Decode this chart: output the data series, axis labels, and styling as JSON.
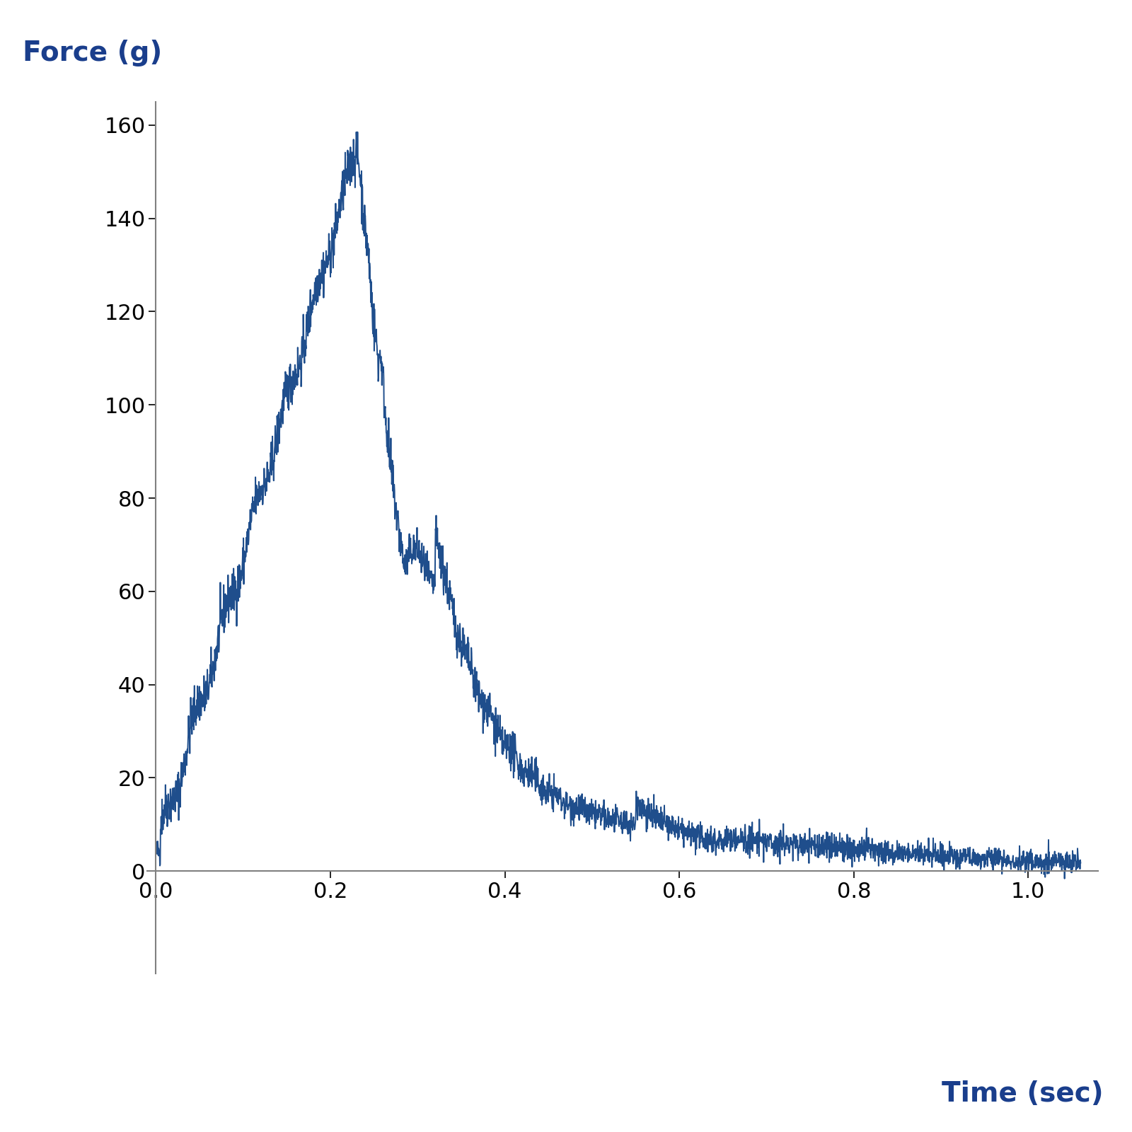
{
  "xlabel": "Time (sec)",
  "ylabel": "Force (g)",
  "xlabel_color": "#1a3e8c",
  "ylabel_color": "#1a3e8c",
  "line_color": "#1f4e8c",
  "xlim": [
    -0.01,
    1.08
  ],
  "ylim": [
    -22,
    165
  ],
  "yticks": [
    0,
    20,
    40,
    60,
    80,
    100,
    120,
    140,
    160
  ],
  "xticks": [
    0.0,
    0.2,
    0.4,
    0.6,
    0.8,
    1.0
  ],
  "xlabel_fontsize": 28,
  "ylabel_fontsize": 28,
  "tick_fontsize": 22,
  "line_width": 1.4,
  "background_color": "#ffffff",
  "spine_color": "#808080",
  "seed": 42
}
